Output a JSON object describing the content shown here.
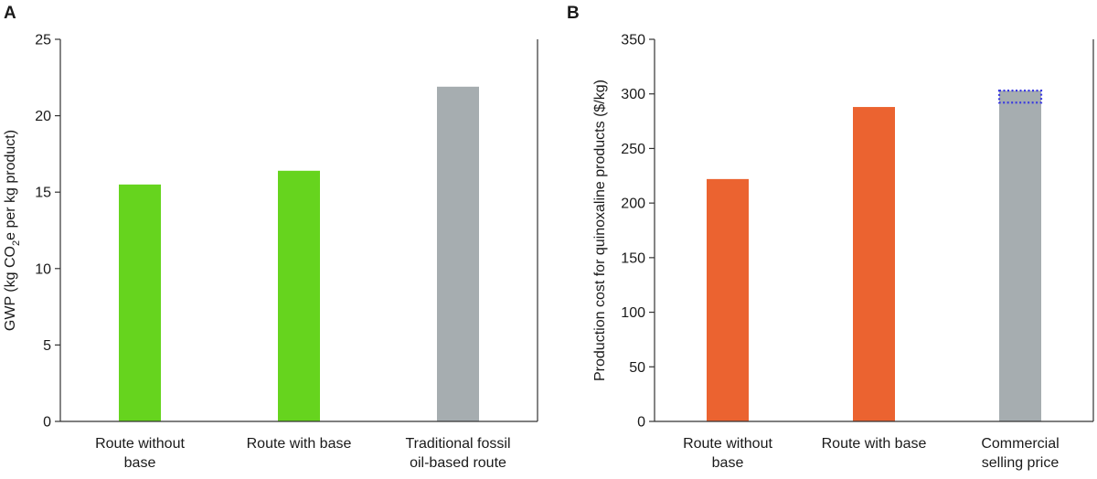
{
  "panel_labels": {
    "a": "A",
    "b": "B"
  },
  "chart_data": [
    {
      "type": "bar",
      "panel": "A",
      "ylabel_parts": [
        "GWP (kg CO",
        "2",
        "e per kg product)"
      ],
      "categories": [
        [
          "Route without",
          "base"
        ],
        [
          "Route with base"
        ],
        [
          "Traditional fossil",
          "oil-based route"
        ]
      ],
      "values": [
        15.5,
        16.4,
        21.9
      ],
      "colors": [
        "#66d41e",
        "#66d41e",
        "#a6adb0"
      ],
      "ylim": [
        0,
        25
      ],
      "yticks": [
        0,
        5,
        10,
        15,
        20,
        25
      ],
      "grid": false
    },
    {
      "type": "bar",
      "panel": "B",
      "ylabel": "Production cost for quinoxaline products ($/kg)",
      "categories": [
        [
          "Route without",
          "base"
        ],
        [
          "Route with base"
        ],
        [
          "Commercial",
          "selling price"
        ]
      ],
      "values": [
        222,
        288,
        303
      ],
      "colors": [
        "#eb6330",
        "#eb6330",
        "#a6adb0"
      ],
      "ylim": [
        0,
        350
      ],
      "yticks": [
        0,
        50,
        100,
        150,
        200,
        250,
        300,
        350
      ],
      "grid": false,
      "annotation": {
        "category_index": 2,
        "range": [
          292,
          303
        ],
        "style": "dotted-box",
        "color": "#3a3ae0"
      }
    }
  ]
}
